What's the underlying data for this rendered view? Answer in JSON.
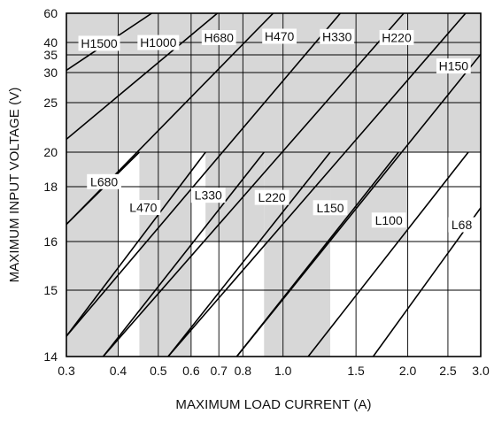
{
  "chart_data": {
    "type": "line",
    "xlabel": "MAXIMUM LOAD CURRENT (A)",
    "ylabel": "MAXIMUM INPUT VOLTAGE (V)",
    "x_scale": "log",
    "y_scale": "nonlinear",
    "xlim": [
      0.3,
      3.0
    ],
    "ylim": [
      14,
      60
    ],
    "x_ticks": [
      0.3,
      0.4,
      0.5,
      0.6,
      0.7,
      0.8,
      1.0,
      1.5,
      2.0,
      2.5,
      3.0
    ],
    "x_tick_labels": [
      "0.3",
      "0.4",
      "0.5",
      "0.6",
      "0.7",
      "0.8",
      "1.0",
      "1.5",
      "2.0",
      "2.5",
      "3.0"
    ],
    "y_ticks": [
      14,
      15,
      16,
      18,
      20,
      25,
      30,
      35,
      40,
      60
    ],
    "y_tick_labels": [
      "14",
      "15",
      "16",
      "18",
      "20",
      "25",
      "30",
      "35",
      "40",
      "60"
    ],
    "grid": true,
    "shaded_region": "H curves region (gray)",
    "colors": {
      "shade": "#d7d7d7",
      "line": "#000000",
      "grid": "#000000"
    },
    "series": [
      {
        "name": "H1500",
        "label_x": 0.36,
        "x": [
          0.3,
          0.482
        ],
        "y": [
          30.6,
          60
        ]
      },
      {
        "name": "H1000",
        "label_x": 0.5,
        "x": [
          0.3,
          0.694
        ],
        "y": [
          21.2,
          60
        ]
      },
      {
        "name": "H680",
        "label_x": 0.7,
        "x": [
          0.3,
          0.947
        ],
        "y": [
          16.6,
          60
        ]
      },
      {
        "name": "H470",
        "label_x": 0.98,
        "x": [
          0.3,
          1.375
        ],
        "y": [
          14.3,
          60
        ]
      },
      {
        "name": "H330",
        "label_x": 1.35,
        "x": [
          0.368,
          1.956
        ],
        "y": [
          14,
          60
        ]
      },
      {
        "name": "H220",
        "label_x": 1.88,
        "x": [
          0.528,
          2.758
        ],
        "y": [
          14,
          60
        ]
      },
      {
        "name": "H150",
        "label_x": 2.58,
        "x": [
          0.773,
          3.0
        ],
        "y": [
          14,
          35.2
        ]
      },
      {
        "name": "L680",
        "label_x": 0.37,
        "x": [
          0.3,
          0.45
        ],
        "y": [
          16.6,
          20
        ]
      },
      {
        "name": "L470",
        "label_x": 0.46,
        "x": [
          0.3,
          0.65
        ],
        "y": [
          14.3,
          20
        ]
      },
      {
        "name": "L330",
        "label_x": 0.66,
        "x": [
          0.368,
          0.9
        ],
        "y": [
          14,
          20
        ]
      },
      {
        "name": "L220",
        "label_x": 0.94,
        "x": [
          0.528,
          1.3
        ],
        "y": [
          14,
          20
        ]
      },
      {
        "name": "L150",
        "label_x": 1.3,
        "x": [
          0.773,
          1.9
        ],
        "y": [
          14,
          20
        ]
      },
      {
        "name": "L100",
        "label_x": 1.8,
        "x": [
          1.15,
          2.8
        ],
        "y": [
          14,
          20
        ]
      },
      {
        "name": "L68",
        "label_x": 2.7,
        "x": [
          1.65,
          3.0
        ],
        "y": [
          14,
          17.2
        ]
      }
    ]
  }
}
